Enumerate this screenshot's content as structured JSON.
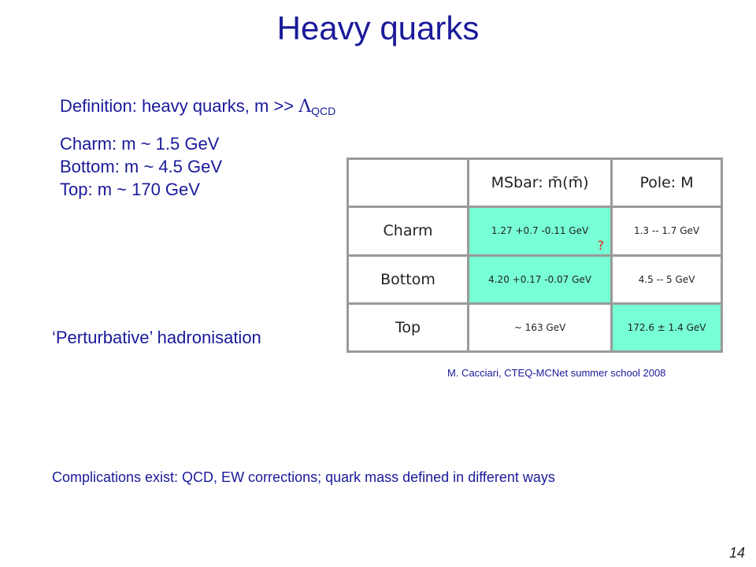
{
  "header": {
    "title": "Heavy quarks"
  },
  "definition": {
    "text": "Definition: heavy quarks, m >> ",
    "symbol": "Λ",
    "subscript": "QCD"
  },
  "masses": [
    "Charm: m ~ 1.5 GeV",
    "Bottom: m ~ 4.5 GeV",
    "Top: m ~ 170 GeV"
  ],
  "table": {
    "columns": [
      "MSbar: m̄(m̄)",
      "Pole: M"
    ],
    "rows": [
      [
        "Charm",
        "1.27 +0.7 -0.11 GeV",
        "1.3 -- 1.7 GeV"
      ],
      [
        "Bottom",
        "4.20 +0.17 -0.07 GeV",
        "4.5 -- 5 GeV"
      ],
      [
        "Top",
        "~ 163 GeV",
        "172.6 ± 1.4 GeV"
      ]
    ],
    "note": "?"
  },
  "citation": "M. Cacciari, CTEQ-MCNet summer school 2008",
  "hadronisation": "‘Perturbative’ hadronisation",
  "complications": "Complications exist: QCD, EW corrections; quark mass defined in different ways",
  "page_number": "14"
}
